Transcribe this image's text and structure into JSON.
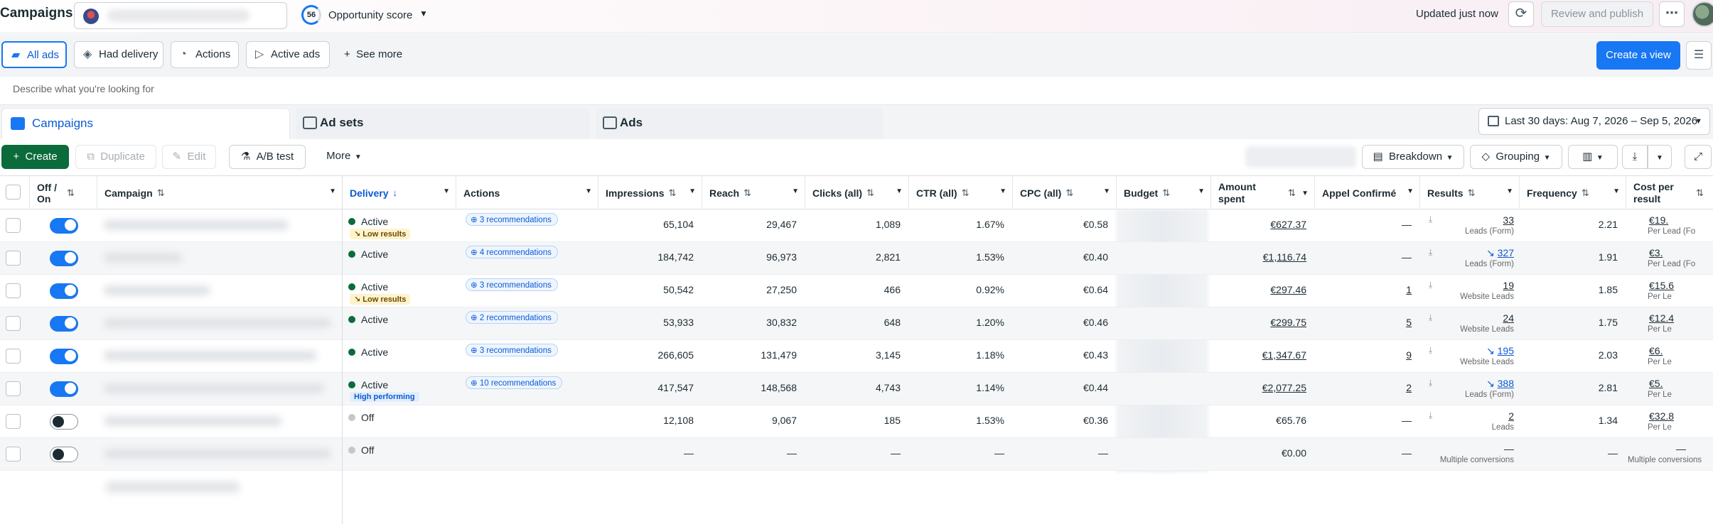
{
  "header": {
    "title": "Campaigns",
    "opportunity_score": "56",
    "opportunity_label": "Opportunity score",
    "updated_text": "Updated just now",
    "review_label": "Review and publish",
    "more_label": "⋯"
  },
  "views": {
    "chips": [
      {
        "label": "All ads",
        "icon": "folder-icon"
      },
      {
        "label": "Had delivery",
        "icon": "cube-icon"
      },
      {
        "label": "Actions",
        "icon": "pointer-icon"
      },
      {
        "label": "Active ads",
        "icon": "send-icon"
      }
    ],
    "see_more": "See more",
    "create_view": "Create a view"
  },
  "search": {
    "placeholder": "Describe what you're looking for"
  },
  "levels": {
    "tabs": [
      "Campaigns",
      "Ad sets",
      "Ads"
    ],
    "date_range": "Last 30 days: Aug 7, 2026 – Sep 5, 2026"
  },
  "toolbar": {
    "create": "Create",
    "duplicate": "Duplicate",
    "edit": "Edit",
    "ab_test": "A/B test",
    "more": "More",
    "breakdown": "Breakdown",
    "grouping": "Grouping"
  },
  "columns": {
    "offon": "Off / On",
    "campaign": "Campaign",
    "delivery": "Delivery",
    "actions": "Actions",
    "impressions": "Impressions",
    "reach": "Reach",
    "clicks": "Clicks (all)",
    "ctr": "CTR (all)",
    "cpc": "CPC (all)",
    "budget": "Budget",
    "amount": "Amount spent",
    "appel": "Appel Confirmé",
    "results": "Results",
    "frequency": "Frequency",
    "cpr": "Cost per result"
  },
  "rows": [
    {
      "on": true,
      "delivery": "Active",
      "badge": "Low results",
      "badge_type": "low",
      "recs": "3 recommendations",
      "impressions": "65,104",
      "reach": "29,467",
      "clicks": "1,089",
      "ctr": "1.67%",
      "cpc": "€0.58",
      "amount": "€627.37",
      "appel": "—",
      "result": "33",
      "result_sub": "Leads (Form)",
      "trend": false,
      "frequency": "2.21",
      "cpr": "€19.",
      "cpr_sub": "Per Lead (Fo",
      "blur_w": 260
    },
    {
      "on": true,
      "delivery": "Active",
      "badge": "",
      "badge_type": "",
      "recs": "4 recommendations",
      "impressions": "184,742",
      "reach": "96,973",
      "clicks": "2,821",
      "ctr": "1.53%",
      "cpc": "€0.40",
      "amount": "€1,116.74",
      "appel": "—",
      "result": "327",
      "result_sub": "Leads (Form)",
      "trend": true,
      "frequency": "1.91",
      "cpr": "€3.",
      "cpr_sub": "Per Lead (Fo",
      "blur_w": 110
    },
    {
      "on": true,
      "delivery": "Active",
      "badge": "Low results",
      "badge_type": "low",
      "recs": "3 recommendations",
      "impressions": "50,542",
      "reach": "27,250",
      "clicks": "466",
      "ctr": "0.92%",
      "cpc": "€0.64",
      "amount": "€297.46",
      "appel": "1",
      "result": "19",
      "result_sub": "Website Leads",
      "trend": false,
      "frequency": "1.85",
      "cpr": "€15.6",
      "cpr_sub": "Per Le",
      "blur_w": 150
    },
    {
      "on": true,
      "delivery": "Active",
      "badge": "",
      "badge_type": "",
      "recs": "2 recommendations",
      "impressions": "53,933",
      "reach": "30,832",
      "clicks": "648",
      "ctr": "1.20%",
      "cpc": "€0.46",
      "amount": "€299.75",
      "appel": "5",
      "result": "24",
      "result_sub": "Website Leads",
      "trend": false,
      "frequency": "1.75",
      "cpr": "€12.4",
      "cpr_sub": "Per Le",
      "blur_w": 320
    },
    {
      "on": true,
      "delivery": "Active",
      "badge": "",
      "badge_type": "",
      "recs": "3 recommendations",
      "impressions": "266,605",
      "reach": "131,479",
      "clicks": "3,145",
      "ctr": "1.18%",
      "cpc": "€0.43",
      "amount": "€1,347.67",
      "appel": "9",
      "result": "195",
      "result_sub": "Website Leads",
      "trend": true,
      "frequency": "2.03",
      "cpr": "€6.",
      "cpr_sub": "Per Le",
      "blur_w": 300
    },
    {
      "on": true,
      "delivery": "Active",
      "badge": "High performing",
      "badge_type": "high",
      "recs": "10 recommendations",
      "impressions": "417,547",
      "reach": "148,568",
      "clicks": "4,743",
      "ctr": "1.14%",
      "cpc": "€0.44",
      "amount": "€2,077.25",
      "appel": "2",
      "result": "388",
      "result_sub": "Leads (Form)",
      "trend": true,
      "frequency": "2.81",
      "cpr": "€5.",
      "cpr_sub": "Per Le",
      "blur_w": 310
    },
    {
      "on": false,
      "delivery": "Off",
      "badge": "",
      "badge_type": "",
      "recs": "",
      "impressions": "12,108",
      "reach": "9,067",
      "clicks": "185",
      "ctr": "1.53%",
      "cpc": "€0.36",
      "amount": "€65.76",
      "appel": "—",
      "result": "2",
      "result_sub": "Leads",
      "trend": false,
      "frequency": "1.34",
      "cpr": "€32.8",
      "cpr_sub": "Per Le",
      "blur_w": 250
    },
    {
      "on": false,
      "delivery": "Off",
      "badge": "",
      "badge_type": "",
      "recs": "",
      "impressions": "—",
      "reach": "—",
      "clicks": "—",
      "ctr": "—",
      "cpc": "—",
      "amount": "€0.00",
      "appel": "—",
      "result": "—",
      "result_sub": "Multiple conversions",
      "trend": false,
      "frequency": "—",
      "cpr": "—",
      "cpr_sub": "Multiple conversions",
      "blur_w": 320
    }
  ]
}
